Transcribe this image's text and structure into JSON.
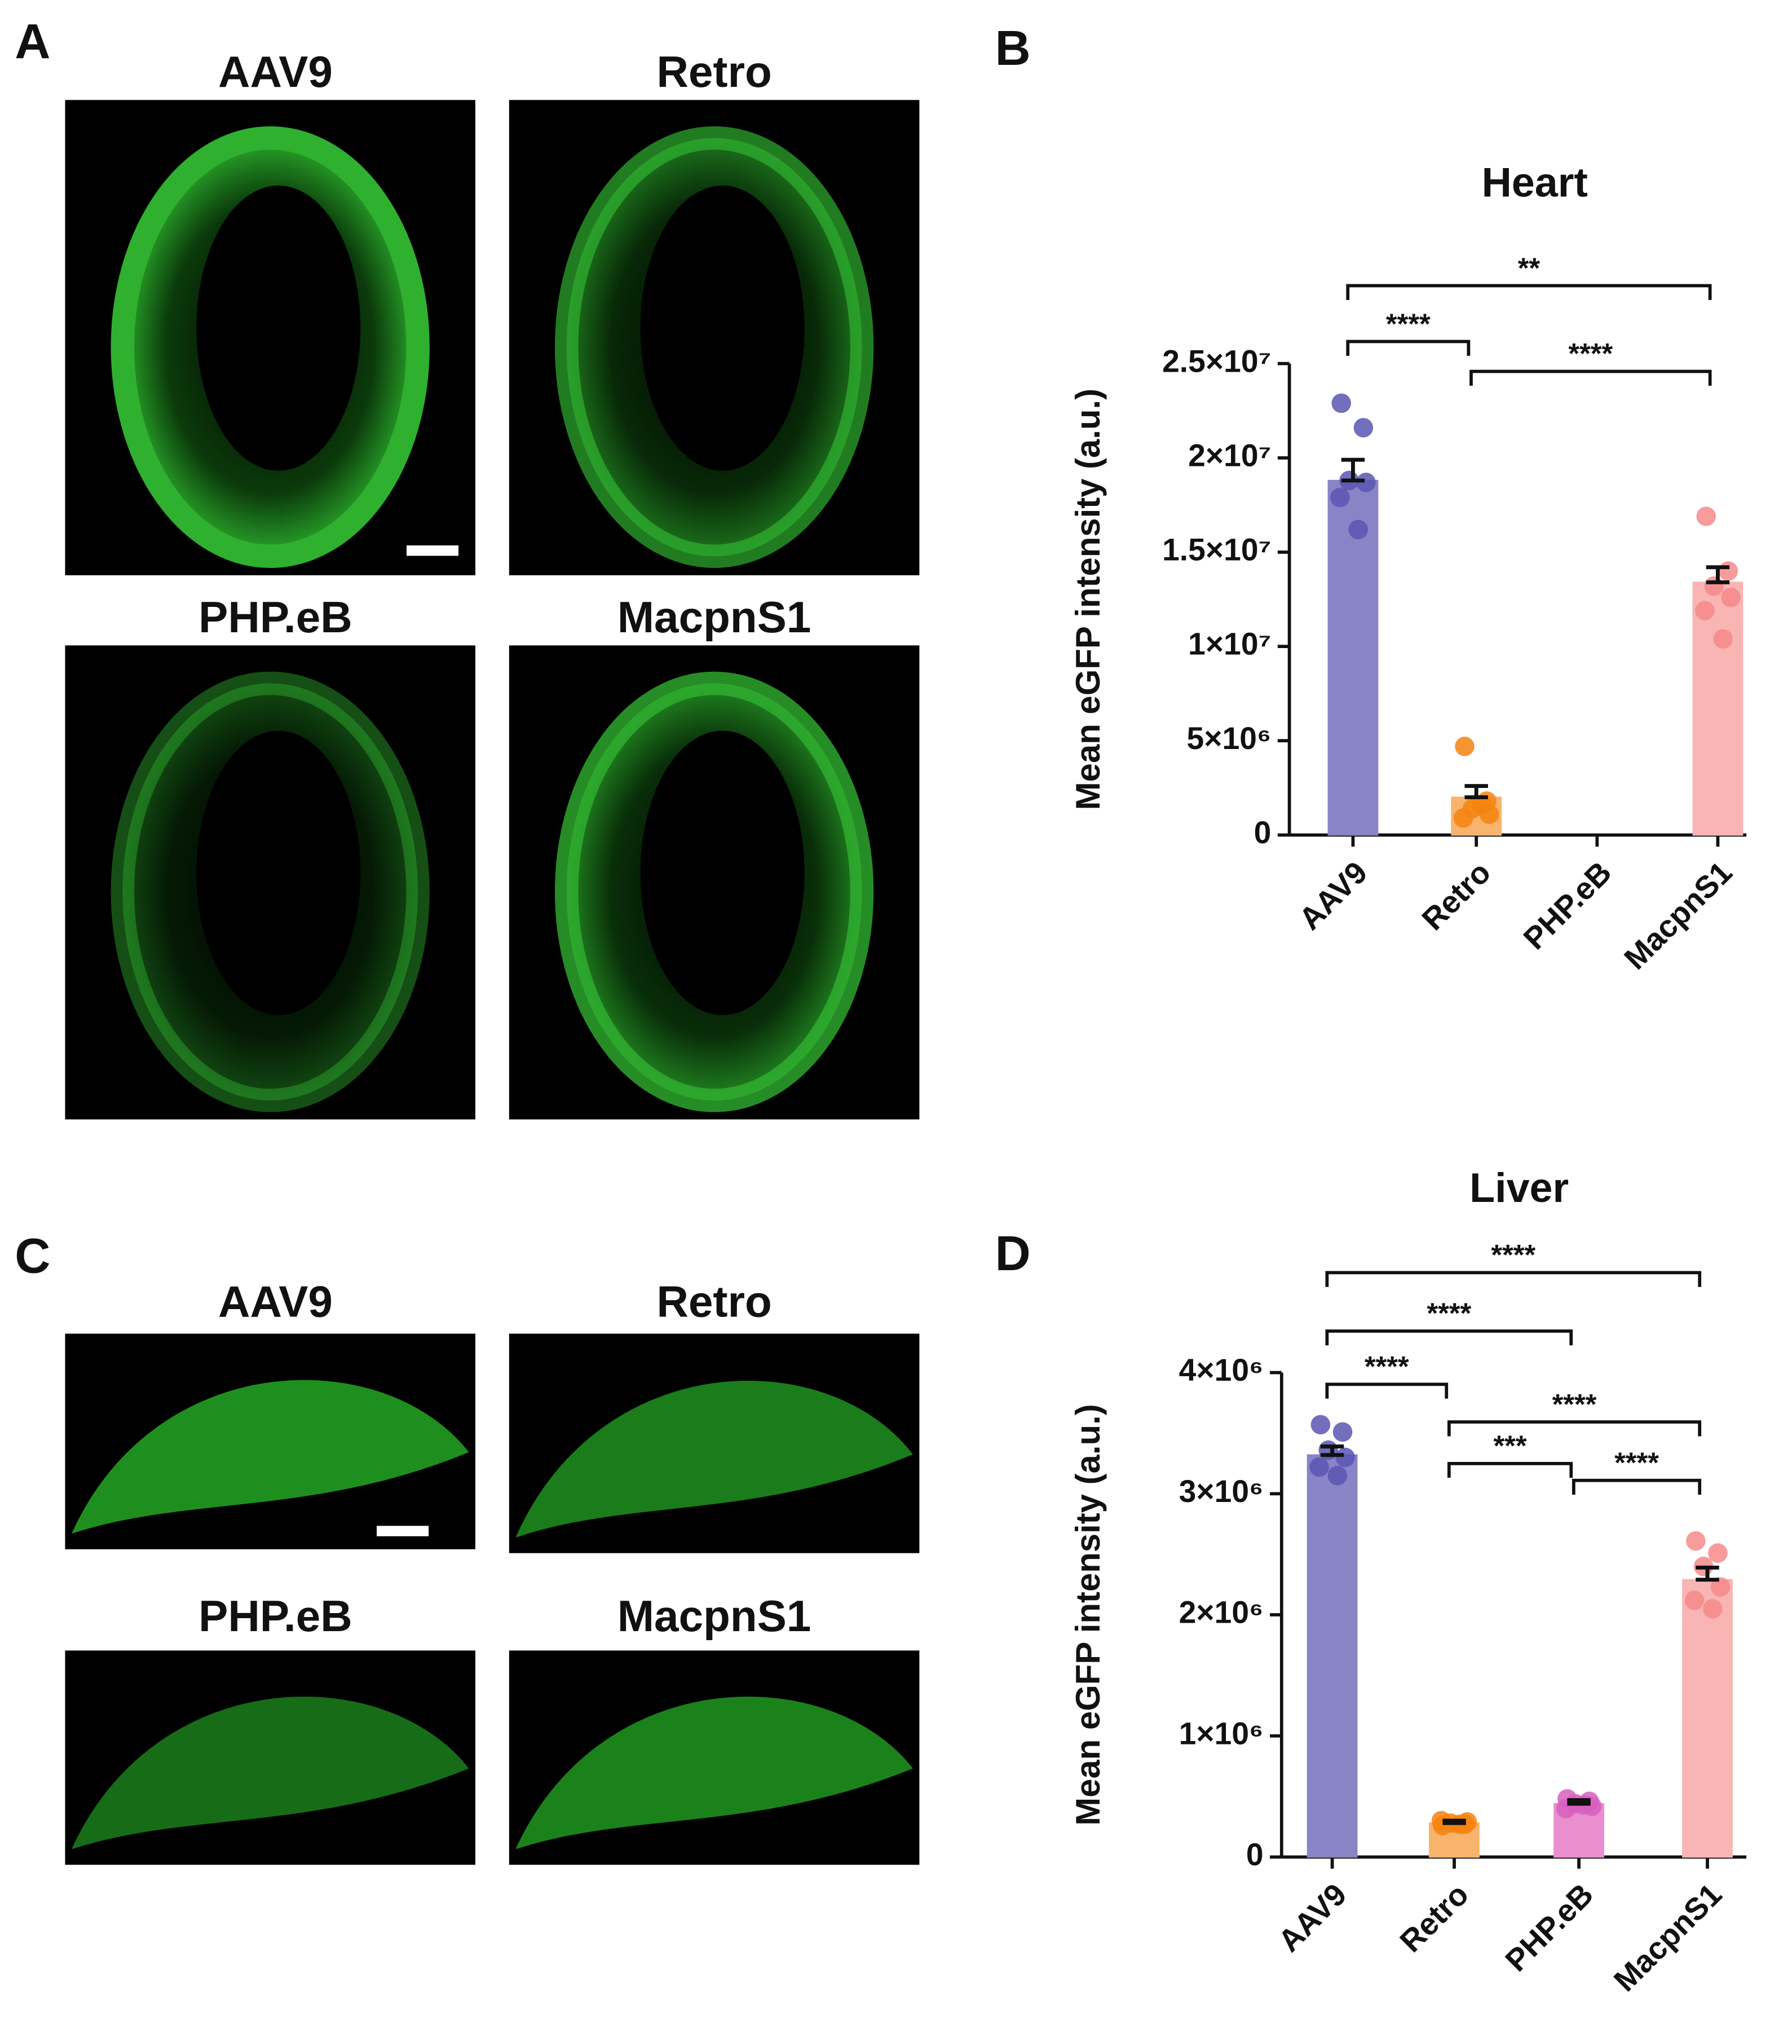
{
  "panels": [
    {
      "label": "A",
      "images": [
        "AAV9",
        "Retro",
        "PHP.eB",
        "MacpnS1"
      ]
    },
    {
      "label": "C",
      "images": [
        "AAV9",
        "Retro",
        "PHP.eB",
        "MacpnS1"
      ]
    }
  ],
  "chart_data": [
    {
      "type": "bar",
      "label": "B",
      "title": "Heart",
      "y_label": "Mean eGFP intensity (a.u.)",
      "categories": [
        "AAV9",
        "Retro",
        "PHP.eB",
        "MacpnS1"
      ],
      "values": [
        18800000,
        2000000,
        null,
        13400000
      ],
      "errors": [
        1100000,
        600000,
        null,
        800000
      ],
      "points": [
        [
          22900000,
          21600000,
          18800000,
          18700000,
          17900000,
          16200000
        ],
        [
          4700000,
          1800000,
          1400000,
          1100000,
          900000,
          1600000
        ],
        [],
        [
          16900000,
          14000000,
          13200000,
          12600000,
          11900000,
          10400000
        ]
      ],
      "colors": [
        "#8884c6",
        "#f8b36c",
        "#e98fcf",
        "#f9b4b4"
      ],
      "point_colors": [
        "#5a55b3",
        "#f5830f",
        "#d85fbe",
        "#f68a8a"
      ],
      "ylim": [
        0,
        25000000
      ],
      "yticks": [
        0,
        {
          "value": 5000000,
          "label": "5×10⁶"
        },
        {
          "value": 10000000,
          "label": "1×10⁷"
        },
        {
          "value": 15000000,
          "label": "1.5×10⁷"
        },
        {
          "value": 20000000,
          "label": "2×10⁷"
        },
        {
          "value": 25000000,
          "label": "2.5×10⁷"
        }
      ],
      "comparisons": [
        {
          "from": "AAV9",
          "to": "MacpnS1",
          "label": "**"
        },
        {
          "from": "AAV9",
          "to": "Retro",
          "label": "****"
        },
        {
          "from": "Retro",
          "to": "MacpnS1",
          "label": "****"
        }
      ]
    },
    {
      "type": "bar",
      "label": "D",
      "title": "Liver",
      "y_label": "Mean eGFP intensity (a.u.)",
      "categories": [
        "AAV9",
        "Retro",
        "PHP.eB",
        "MacpnS1"
      ],
      "values": [
        3320000,
        280000,
        440000,
        2290000
      ],
      "errors": [
        70000,
        20000,
        30000,
        100000
      ],
      "points": [
        [
          3570000,
          3510000,
          3360000,
          3300000,
          3220000,
          3150000
        ],
        [
          260000,
          270000,
          280000,
          290000,
          300000,
          270000
        ],
        [
          480000,
          460000,
          440000,
          420000,
          400000,
          430000
        ],
        [
          2610000,
          2510000,
          2400000,
          2230000,
          2120000,
          2050000
        ]
      ],
      "colors": [
        "#8884c6",
        "#f8b36c",
        "#e98fcf",
        "#f9b4b4"
      ],
      "point_colors": [
        "#5a55b3",
        "#f5830f",
        "#d85fbe",
        "#f68a8a"
      ],
      "ylim": [
        0,
        4000000
      ],
      "yticks": [
        0,
        {
          "value": 1000000,
          "label": "1×10⁶"
        },
        {
          "value": 2000000,
          "label": "2×10⁶"
        },
        {
          "value": 3000000,
          "label": "3×10⁶"
        },
        {
          "value": 4000000,
          "label": "4×10⁶"
        }
      ],
      "comparisons": [
        {
          "from": "AAV9",
          "to": "MacpnS1",
          "label": "****"
        },
        {
          "from": "AAV9",
          "to": "PHP.eB",
          "label": "****"
        },
        {
          "from": "AAV9",
          "to": "Retro",
          "label": "****"
        },
        {
          "from": "Retro",
          "to": "MacpnS1",
          "label": "****"
        },
        {
          "from": "Retro",
          "to": "PHP.eB",
          "label": "***"
        },
        {
          "from": "PHP.eB",
          "to": "MacpnS1",
          "label": "****"
        }
      ]
    }
  ]
}
